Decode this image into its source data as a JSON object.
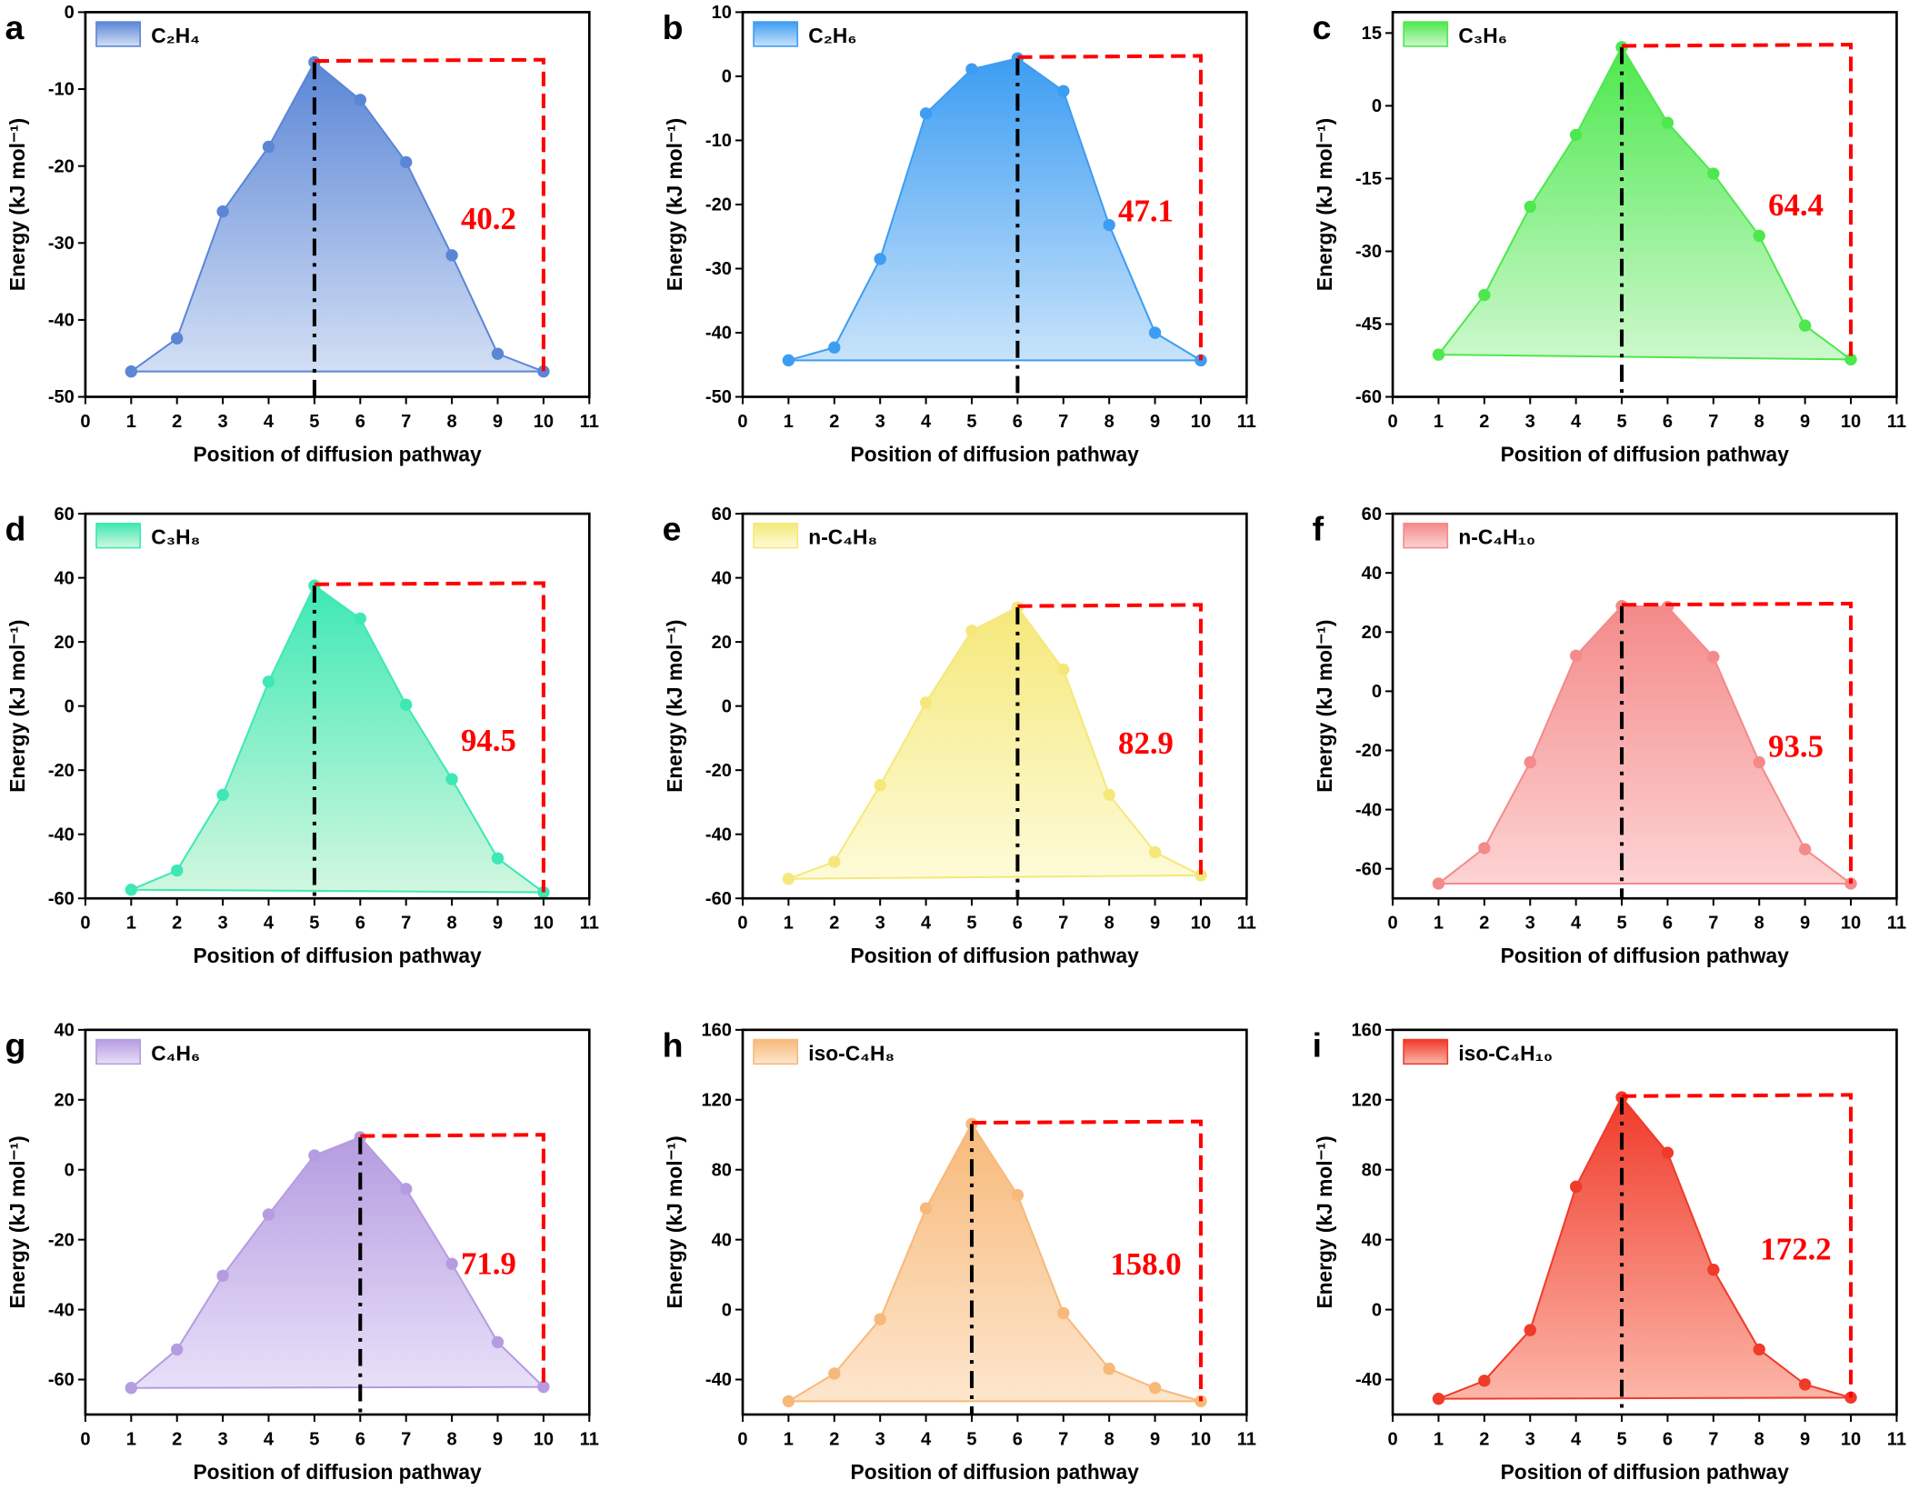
{
  "chart_data": [
    {
      "panel": "a",
      "type": "area",
      "legend": "C₂H₄",
      "x": [
        1,
        2,
        3,
        4,
        5,
        6,
        7,
        8,
        9,
        10
      ],
      "values": [
        -46.7,
        -42.4,
        -25.9,
        -17.5,
        -6.5,
        -11.4,
        -19.5,
        -31.6,
        -44.4,
        -46.7
      ],
      "barrier_label": "40.2",
      "peak_x": 5,
      "ylim": [
        -50,
        0
      ],
      "yticks": [
        -50,
        -40,
        -30,
        -20,
        -10,
        0
      ],
      "color": "#5b86d6",
      "fill_light": "#d3dff4"
    },
    {
      "panel": "b",
      "type": "area",
      "legend": "C₂H₆",
      "x": [
        1,
        2,
        3,
        4,
        5,
        6,
        7,
        8,
        9,
        10
      ],
      "values": [
        -44.3,
        -42.3,
        -28.5,
        -5.8,
        1.1,
        2.8,
        -2.3,
        -23.2,
        -40.0,
        -44.3
      ],
      "barrier_label": "47.1",
      "peak_x": 6,
      "ylim": [
        -50,
        10
      ],
      "yticks": [
        -50,
        -40,
        -30,
        -20,
        -10,
        0,
        10
      ],
      "color": "#3d9df2",
      "fill_light": "#c8e3fb"
    },
    {
      "panel": "c",
      "type": "area",
      "legend": "C₃H₆",
      "x": [
        1,
        2,
        3,
        4,
        5,
        6,
        7,
        8,
        9,
        10
      ],
      "values": [
        -51.3,
        -39.0,
        -20.8,
        -6.0,
        12.1,
        -3.5,
        -14.0,
        -26.8,
        -45.3,
        -52.3
      ],
      "barrier_label": "64.4",
      "peak_x": 5,
      "ylim": [
        -60,
        19.3
      ],
      "yticks": [
        -60,
        -45,
        -30,
        -15,
        0,
        15
      ],
      "color": "#4de84d",
      "fill_light": "#cdf8cd"
    },
    {
      "panel": "d",
      "type": "area",
      "legend": "C₃H₈",
      "x": [
        1,
        2,
        3,
        4,
        5,
        6,
        7,
        8,
        9,
        10
      ],
      "values": [
        -57.3,
        -51.3,
        -27.7,
        7.6,
        37.6,
        27.3,
        0.4,
        -22.8,
        -47.5,
        -58.1
      ],
      "barrier_label": "94.5",
      "peak_x": 5,
      "ylim": [
        -60,
        60
      ],
      "yticks": [
        -60,
        -40,
        -20,
        0,
        20,
        40,
        60
      ],
      "color": "#3ee8b4",
      "fill_light": "#d2f7df"
    },
    {
      "panel": "e",
      "type": "area",
      "legend": "n-C₄H₈",
      "x": [
        1,
        2,
        3,
        4,
        5,
        6,
        7,
        8,
        9,
        10
      ],
      "values": [
        -53.9,
        -48.6,
        -24.7,
        1.1,
        23.5,
        30.8,
        11.4,
        -27.7,
        -45.6,
        -52.8
      ],
      "barrier_label": "82.9",
      "peak_x": 6,
      "ylim": [
        -60,
        60
      ],
      "yticks": [
        -60,
        -40,
        -20,
        0,
        20,
        40,
        60
      ],
      "color": "#f5e87a",
      "fill_light": "#fdfbd8"
    },
    {
      "panel": "f",
      "type": "area",
      "legend": "n-C₄H₁₀",
      "x": [
        1,
        2,
        3,
        4,
        5,
        6,
        7,
        8,
        9,
        10
      ],
      "values": [
        -65.0,
        -53.0,
        -24.0,
        12.0,
        28.8,
        28.5,
        11.6,
        -24.0,
        -53.4,
        -65.0
      ],
      "barrier_label": "93.5",
      "peak_x": 5,
      "ylim": [
        -70,
        60
      ],
      "yticks": [
        -60,
        -40,
        -20,
        0,
        20,
        40,
        60
      ],
      "color": "#f48a8a",
      "fill_light": "#fdd3d3"
    },
    {
      "panel": "g",
      "type": "area",
      "legend": "C₄H₆",
      "x": [
        1,
        2,
        3,
        4,
        5,
        6,
        7,
        8,
        9,
        10
      ],
      "values": [
        -62.4,
        -51.4,
        -30.3,
        -12.8,
        4.1,
        9.3,
        -5.5,
        -26.9,
        -49.3,
        -62.1
      ],
      "barrier_label": "71.9",
      "peak_x": 6,
      "ylim": [
        -70,
        40
      ],
      "yticks": [
        -60,
        -40,
        -20,
        0,
        20,
        40
      ],
      "color": "#b59ce0",
      "fill_light": "#e8e0f9"
    },
    {
      "panel": "h",
      "type": "area",
      "legend": "iso-C₄H₈",
      "x": [
        1,
        2,
        3,
        4,
        5,
        6,
        7,
        8,
        9,
        10
      ],
      "values": [
        -52.4,
        -36.6,
        -5.5,
        57.9,
        106.2,
        65.5,
        -2.0,
        -33.8,
        -44.8,
        -52.4
      ],
      "barrier_label": "158.0",
      "peak_x": 5,
      "ylim": [
        -60,
        160
      ],
      "yticks": [
        -40,
        0,
        40,
        80,
        120,
        160
      ],
      "color": "#f7b97a",
      "fill_light": "#fde6cd"
    },
    {
      "panel": "i",
      "type": "area",
      "legend": "iso-C₄H₁₀",
      "x": [
        1,
        2,
        3,
        4,
        5,
        6,
        7,
        8,
        9,
        10
      ],
      "values": [
        -51.0,
        -40.7,
        -11.7,
        70.3,
        121.4,
        89.7,
        22.8,
        -22.8,
        -42.8,
        -50.3
      ],
      "barrier_label": "172.2",
      "peak_x": 5,
      "ylim": [
        -60,
        160
      ],
      "yticks": [
        -40,
        0,
        40,
        80,
        120,
        160
      ],
      "color": "#f03a2a",
      "fill_light": "#fbb6a8"
    }
  ],
  "shared": {
    "xlabel": "Position of diffusion pathway",
    "ylabel": "Energy (kJ mol⁻¹)",
    "xlim": [
      0,
      11
    ],
    "xticks": [
      0,
      1,
      2,
      3,
      4,
      5,
      6,
      7,
      8,
      9,
      10,
      11
    ],
    "barrier_color": "#ff0000",
    "peak_line_color": "#000000"
  }
}
